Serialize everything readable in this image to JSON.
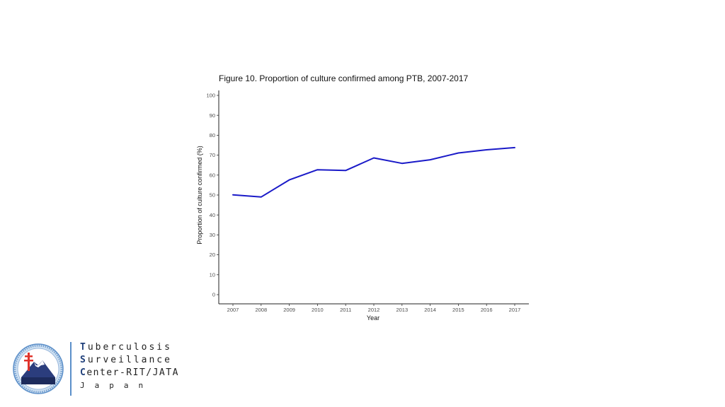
{
  "chart_data": {
    "type": "line",
    "title": "Figure 10. Proportion of culture confirmed among PTB, 2007-2017",
    "xlabel": "Year",
    "ylabel": "Proportion of culture confirmed (%)",
    "categories": [
      "2007",
      "2008",
      "2009",
      "2010",
      "2011",
      "2012",
      "2013",
      "2014",
      "2015",
      "2016",
      "2017"
    ],
    "series": [
      {
        "color": "#1a1ac8",
        "values": [
          50.1,
          49.0,
          57.6,
          62.7,
          62.3,
          68.6,
          65.9,
          67.7,
          71.1,
          72.7,
          73.8
        ]
      }
    ],
    "ylim": [
      0,
      100
    ],
    "yticks": [
      0,
      10,
      20,
      30,
      40,
      50,
      60,
      70,
      80,
      90,
      100
    ],
    "grid": false
  },
  "org": {
    "line1_initial": "T",
    "line1_rest": "uberculosis",
    "line2_initial": "S",
    "line2_rest": "urveillance",
    "line3_initial": "C",
    "line3_rest": "enter-RIT/JATA",
    "line4": "Japan",
    "logo_icon": "double-barred-cross-mountain-seal-icon",
    "accent_color": "#1f3f7a"
  }
}
